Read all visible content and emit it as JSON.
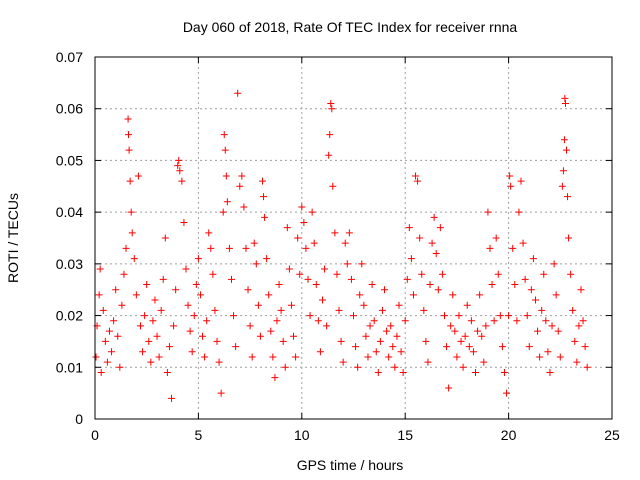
{
  "chart_data": {
    "type": "scatter",
    "title": "Day 060 of 2018, Rate Of TEC Index for receiver rnna",
    "xlabel": "GPS time / hours",
    "ylabel": "ROTI / TECUs",
    "xlim": [
      0,
      25
    ],
    "ylim": [
      0,
      0.07
    ],
    "xticks": [
      0,
      5,
      10,
      15,
      20,
      25
    ],
    "xtick_labels": [
      "0",
      "5",
      "10",
      "15",
      "20",
      "25"
    ],
    "yticks": [
      0,
      0.01,
      0.02,
      0.03,
      0.04,
      0.05,
      0.06,
      0.07
    ],
    "ytick_labels": [
      "0",
      "0.01",
      "0.02",
      "0.03",
      "0.04",
      "0.05",
      "0.06",
      "0.07"
    ],
    "grid": true,
    "marker": "+",
    "color": "#ff0000",
    "series": [
      {
        "name": "ROTI",
        "points": [
          [
            0.05,
            0.012
          ],
          [
            0.1,
            0.018
          ],
          [
            0.2,
            0.024
          ],
          [
            0.25,
            0.029
          ],
          [
            0.3,
            0.009
          ],
          [
            0.4,
            0.021
          ],
          [
            0.5,
            0.015
          ],
          [
            0.6,
            0.011
          ],
          [
            0.7,
            0.017
          ],
          [
            0.8,
            0.013
          ],
          [
            0.9,
            0.019
          ],
          [
            1.0,
            0.025
          ],
          [
            1.1,
            0.016
          ],
          [
            1.2,
            0.01
          ],
          [
            1.3,
            0.022
          ],
          [
            1.4,
            0.028
          ],
          [
            1.5,
            0.033
          ],
          [
            1.6,
            0.058
          ],
          [
            1.62,
            0.055
          ],
          [
            1.65,
            0.052
          ],
          [
            1.7,
            0.046
          ],
          [
            1.75,
            0.04
          ],
          [
            1.8,
            0.036
          ],
          [
            1.9,
            0.031
          ],
          [
            2.0,
            0.024
          ],
          [
            2.1,
            0.047
          ],
          [
            2.2,
            0.018
          ],
          [
            2.3,
            0.013
          ],
          [
            2.4,
            0.02
          ],
          [
            2.5,
            0.026
          ],
          [
            2.6,
            0.015
          ],
          [
            2.7,
            0.011
          ],
          [
            2.8,
            0.019
          ],
          [
            2.9,
            0.023
          ],
          [
            3.0,
            0.016
          ],
          [
            3.1,
            0.012
          ],
          [
            3.2,
            0.021
          ],
          [
            3.3,
            0.027
          ],
          [
            3.4,
            0.035
          ],
          [
            3.5,
            0.009
          ],
          [
            3.6,
            0.014
          ],
          [
            3.7,
            0.004
          ],
          [
            3.8,
            0.018
          ],
          [
            3.9,
            0.025
          ],
          [
            4.0,
            0.049
          ],
          [
            4.05,
            0.05
          ],
          [
            4.1,
            0.048
          ],
          [
            4.2,
            0.046
          ],
          [
            4.3,
            0.038
          ],
          [
            4.4,
            0.029
          ],
          [
            4.5,
            0.022
          ],
          [
            4.6,
            0.017
          ],
          [
            4.7,
            0.013
          ],
          [
            4.8,
            0.02
          ],
          [
            4.9,
            0.026
          ],
          [
            5.0,
            0.031
          ],
          [
            5.1,
            0.024
          ],
          [
            5.2,
            0.016
          ],
          [
            5.3,
            0.012
          ],
          [
            5.4,
            0.019
          ],
          [
            5.5,
            0.036
          ],
          [
            5.6,
            0.033
          ],
          [
            5.7,
            0.028
          ],
          [
            5.8,
            0.021
          ],
          [
            5.9,
            0.015
          ],
          [
            6.0,
            0.011
          ],
          [
            6.1,
            0.005
          ],
          [
            6.2,
            0.04
          ],
          [
            6.25,
            0.055
          ],
          [
            6.3,
            0.052
          ],
          [
            6.35,
            0.047
          ],
          [
            6.4,
            0.042
          ],
          [
            6.5,
            0.033
          ],
          [
            6.6,
            0.027
          ],
          [
            6.7,
            0.02
          ],
          [
            6.8,
            0.014
          ],
          [
            6.9,
            0.063
          ],
          [
            7.0,
            0.045
          ],
          [
            7.1,
            0.047
          ],
          [
            7.2,
            0.041
          ],
          [
            7.3,
            0.033
          ],
          [
            7.4,
            0.025
          ],
          [
            7.5,
            0.018
          ],
          [
            7.6,
            0.012
          ],
          [
            7.7,
            0.034
          ],
          [
            7.8,
            0.03
          ],
          [
            7.9,
            0.022
          ],
          [
            8.0,
            0.016
          ],
          [
            8.1,
            0.046
          ],
          [
            8.15,
            0.043
          ],
          [
            8.2,
            0.039
          ],
          [
            8.3,
            0.031
          ],
          [
            8.4,
            0.024
          ],
          [
            8.5,
            0.017
          ],
          [
            8.6,
            0.012
          ],
          [
            8.7,
            0.008
          ],
          [
            8.8,
            0.019
          ],
          [
            8.9,
            0.026
          ],
          [
            9.0,
            0.021
          ],
          [
            9.1,
            0.015
          ],
          [
            9.2,
            0.01
          ],
          [
            9.3,
            0.037
          ],
          [
            9.4,
            0.029
          ],
          [
            9.5,
            0.022
          ],
          [
            9.6,
            0.016
          ],
          [
            9.7,
            0.012
          ],
          [
            9.8,
            0.035
          ],
          [
            9.9,
            0.028
          ],
          [
            10.0,
            0.041
          ],
          [
            10.1,
            0.038
          ],
          [
            10.2,
            0.033
          ],
          [
            10.3,
            0.027
          ],
          [
            10.4,
            0.02
          ],
          [
            10.5,
            0.04
          ],
          [
            10.6,
            0.034
          ],
          [
            10.7,
            0.026
          ],
          [
            10.8,
            0.019
          ],
          [
            10.9,
            0.013
          ],
          [
            11.0,
            0.023
          ],
          [
            11.1,
            0.029
          ],
          [
            11.2,
            0.018
          ],
          [
            11.3,
            0.051
          ],
          [
            11.35,
            0.055
          ],
          [
            11.4,
            0.061
          ],
          [
            11.45,
            0.06
          ],
          [
            11.5,
            0.045
          ],
          [
            11.6,
            0.036
          ],
          [
            11.7,
            0.028
          ],
          [
            11.8,
            0.021
          ],
          [
            11.9,
            0.015
          ],
          [
            12.0,
            0.011
          ],
          [
            12.1,
            0.034
          ],
          [
            12.2,
            0.03
          ],
          [
            12.3,
            0.036
          ],
          [
            12.4,
            0.027
          ],
          [
            12.5,
            0.02
          ],
          [
            12.6,
            0.014
          ],
          [
            12.7,
            0.01
          ],
          [
            12.8,
            0.024
          ],
          [
            12.9,
            0.03
          ],
          [
            13.0,
            0.022
          ],
          [
            13.1,
            0.016
          ],
          [
            13.2,
            0.012
          ],
          [
            13.3,
            0.018
          ],
          [
            13.4,
            0.026
          ],
          [
            13.5,
            0.019
          ],
          [
            13.6,
            0.013
          ],
          [
            13.7,
            0.009
          ],
          [
            13.8,
            0.015
          ],
          [
            13.9,
            0.021
          ],
          [
            14.0,
            0.025
          ],
          [
            14.1,
            0.017
          ],
          [
            14.2,
            0.012
          ],
          [
            14.3,
            0.018
          ],
          [
            14.4,
            0.014
          ],
          [
            14.5,
            0.01
          ],
          [
            14.6,
            0.016
          ],
          [
            14.7,
            0.022
          ],
          [
            14.8,
            0.013
          ],
          [
            14.9,
            0.009
          ],
          [
            15.0,
            0.019
          ],
          [
            15.1,
            0.027
          ],
          [
            15.2,
            0.037
          ],
          [
            15.3,
            0.031
          ],
          [
            15.4,
            0.024
          ],
          [
            15.5,
            0.047
          ],
          [
            15.6,
            0.046
          ],
          [
            15.7,
            0.035
          ],
          [
            15.8,
            0.028
          ],
          [
            15.9,
            0.021
          ],
          [
            16.0,
            0.015
          ],
          [
            16.1,
            0.011
          ],
          [
            16.2,
            0.026
          ],
          [
            16.3,
            0.034
          ],
          [
            16.4,
            0.039
          ],
          [
            16.5,
            0.032
          ],
          [
            16.6,
            0.025
          ],
          [
            16.7,
            0.037
          ],
          [
            16.8,
            0.028
          ],
          [
            16.9,
            0.02
          ],
          [
            17.0,
            0.014
          ],
          [
            17.1,
            0.006
          ],
          [
            17.2,
            0.018
          ],
          [
            17.3,
            0.024
          ],
          [
            17.4,
            0.017
          ],
          [
            17.5,
            0.012
          ],
          [
            17.6,
            0.02
          ],
          [
            17.7,
            0.015
          ],
          [
            17.8,
            0.01
          ],
          [
            17.9,
            0.016
          ],
          [
            18.0,
            0.022
          ],
          [
            18.1,
            0.014
          ],
          [
            18.2,
            0.019
          ],
          [
            18.3,
            0.013
          ],
          [
            18.4,
            0.009
          ],
          [
            18.5,
            0.017
          ],
          [
            18.6,
            0.024
          ],
          [
            18.7,
            0.016
          ],
          [
            18.8,
            0.011
          ],
          [
            18.9,
            0.018
          ],
          [
            19.0,
            0.04
          ],
          [
            19.1,
            0.033
          ],
          [
            19.2,
            0.026
          ],
          [
            19.3,
            0.019
          ],
          [
            19.4,
            0.035
          ],
          [
            19.5,
            0.028
          ],
          [
            19.6,
            0.02
          ],
          [
            19.7,
            0.014
          ],
          [
            19.8,
            0.009
          ],
          [
            19.9,
            0.005
          ],
          [
            20.0,
            0.02
          ],
          [
            20.05,
            0.047
          ],
          [
            20.1,
            0.045
          ],
          [
            20.2,
            0.033
          ],
          [
            20.3,
            0.026
          ],
          [
            20.4,
            0.019
          ],
          [
            20.5,
            0.04
          ],
          [
            20.6,
            0.046
          ],
          [
            20.7,
            0.034
          ],
          [
            20.8,
            0.027
          ],
          [
            20.9,
            0.02
          ],
          [
            21.0,
            0.014
          ],
          [
            21.1,
            0.025
          ],
          [
            21.2,
            0.031
          ],
          [
            21.3,
            0.023
          ],
          [
            21.4,
            0.017
          ],
          [
            21.5,
            0.012
          ],
          [
            21.6,
            0.021
          ],
          [
            21.7,
            0.028
          ],
          [
            21.8,
            0.019
          ],
          [
            21.9,
            0.013
          ],
          [
            22.0,
            0.009
          ],
          [
            22.1,
            0.018
          ],
          [
            22.2,
            0.03
          ],
          [
            22.3,
            0.024
          ],
          [
            22.4,
            0.017
          ],
          [
            22.5,
            0.012
          ],
          [
            22.6,
            0.045
          ],
          [
            22.65,
            0.048
          ],
          [
            22.7,
            0.054
          ],
          [
            22.72,
            0.062
          ],
          [
            22.75,
            0.061
          ],
          [
            22.8,
            0.052
          ],
          [
            22.85,
            0.043
          ],
          [
            22.9,
            0.035
          ],
          [
            23.0,
            0.028
          ],
          [
            23.1,
            0.021
          ],
          [
            23.2,
            0.015
          ],
          [
            23.3,
            0.011
          ],
          [
            23.4,
            0.018
          ],
          [
            23.5,
            0.025
          ],
          [
            23.6,
            0.019
          ],
          [
            23.7,
            0.014
          ],
          [
            23.8,
            0.01
          ]
        ]
      }
    ]
  }
}
